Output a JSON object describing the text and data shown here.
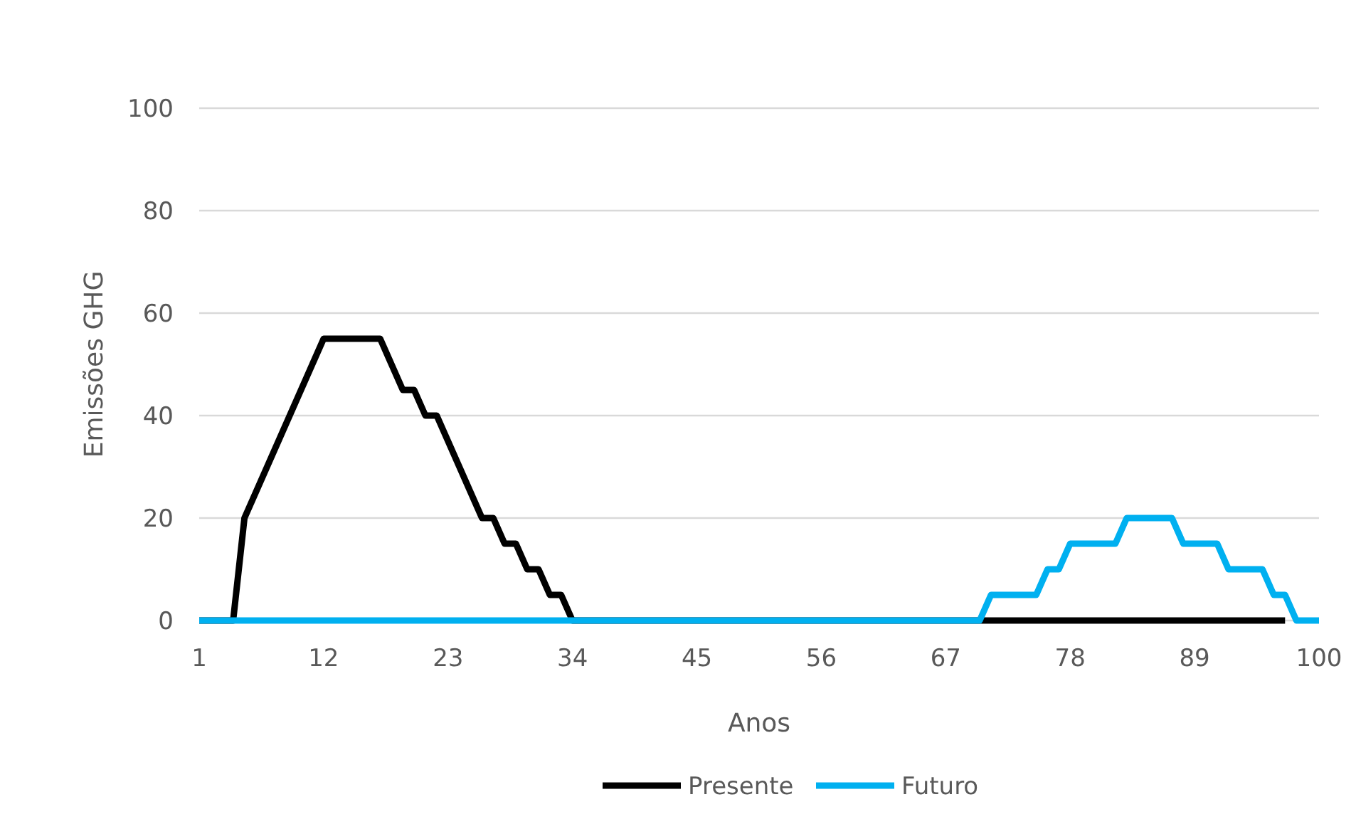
{
  "chart_data": {
    "type": "line",
    "xlabel": "Anos",
    "ylabel": "Emissões GHG",
    "x": [
      1,
      2,
      3,
      4,
      5,
      6,
      7,
      8,
      9,
      10,
      11,
      12,
      13,
      14,
      15,
      16,
      17,
      18,
      19,
      20,
      21,
      22,
      23,
      24,
      25,
      26,
      27,
      28,
      29,
      30,
      31,
      32,
      33,
      34,
      35,
      36,
      37,
      38,
      39,
      40,
      41,
      42,
      43,
      44,
      45,
      46,
      47,
      48,
      49,
      50,
      51,
      52,
      53,
      54,
      55,
      56,
      57,
      58,
      59,
      60,
      61,
      62,
      63,
      64,
      65,
      66,
      67,
      68,
      69,
      70,
      71,
      72,
      73,
      74,
      75,
      76,
      77,
      78,
      79,
      80,
      81,
      82,
      83,
      84,
      85,
      86,
      87,
      88,
      89,
      90,
      91,
      92,
      93,
      94,
      95,
      96,
      97,
      98,
      99,
      100
    ],
    "series": [
      {
        "name": "Presente",
        "color": "#000000",
        "values": [
          0,
          0,
          0,
          0,
          20,
          25,
          30,
          35,
          40,
          45,
          50,
          55,
          55,
          55,
          55,
          55,
          55,
          50,
          45,
          45,
          40,
          40,
          35,
          30,
          25,
          20,
          20,
          15,
          15,
          10,
          10,
          5,
          5,
          0,
          0,
          0,
          0,
          0,
          0,
          0,
          0,
          0,
          0,
          0,
          0,
          0,
          0,
          0,
          0,
          0,
          0,
          0,
          0,
          0,
          0,
          0,
          0,
          0,
          0,
          0,
          0,
          0,
          0,
          0,
          0,
          0,
          0,
          0,
          0,
          0,
          0,
          0,
          0,
          0,
          0,
          0,
          0,
          0,
          0,
          0,
          0,
          0,
          0,
          0,
          0,
          0,
          0,
          0,
          0,
          0,
          0,
          0,
          0,
          0,
          0,
          0,
          0,
          null,
          null,
          null
        ]
      },
      {
        "name": "Futuro",
        "color": "#00b0f0",
        "values": [
          0,
          0,
          0,
          0,
          0,
          0,
          0,
          0,
          0,
          0,
          0,
          0,
          0,
          0,
          0,
          0,
          0,
          0,
          0,
          0,
          0,
          0,
          0,
          0,
          0,
          0,
          0,
          0,
          0,
          0,
          0,
          0,
          0,
          0,
          0,
          0,
          0,
          0,
          0,
          0,
          0,
          0,
          0,
          0,
          0,
          0,
          0,
          0,
          0,
          0,
          0,
          0,
          0,
          0,
          0,
          0,
          0,
          0,
          0,
          0,
          0,
          0,
          0,
          0,
          0,
          0,
          0,
          0,
          0,
          0,
          5,
          5,
          5,
          5,
          5,
          10,
          10,
          15,
          15,
          15,
          15,
          15,
          20,
          20,
          20,
          20,
          20,
          15,
          15,
          15,
          15,
          10,
          10,
          10,
          10,
          5,
          5,
          0,
          0,
          0
        ]
      }
    ],
    "xlim": [
      1,
      100
    ],
    "xticks": [
      1,
      12,
      23,
      34,
      45,
      56,
      67,
      78,
      89,
      100
    ],
    "ylim": [
      0,
      100
    ],
    "yticks": [
      0,
      20,
      40,
      60,
      80,
      100
    ],
    "grid": "y",
    "legend": "bottom",
    "marker": "none",
    "line_style": "solid"
  }
}
